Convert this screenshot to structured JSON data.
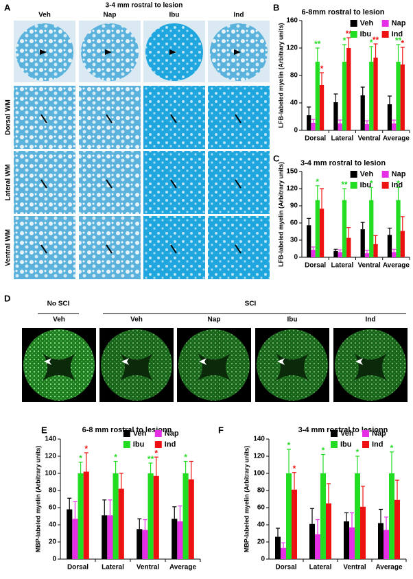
{
  "panels": {
    "A": {
      "letter": "A",
      "title": "3-4 mm rostral to lesion",
      "columns": [
        "Veh",
        "Nap",
        "Ibu",
        "Ind"
      ],
      "rows": [
        "Dorsal WM",
        "Lateral WM",
        "Ventral WM"
      ]
    },
    "D": {
      "letter": "D",
      "groups": [
        "No SCI",
        "SCI"
      ],
      "columns": [
        "Veh",
        "Veh",
        "Nap",
        "Ibu",
        "Ind"
      ]
    }
  },
  "chart_data": [
    {
      "letter": "B",
      "type": "bar",
      "title": "6-8mm rostral to lesion",
      "y_label": "LFB-labeled myelin (Arbitrary units)",
      "categories": [
        "Dorsal",
        "Lateral",
        "Ventral",
        "Average"
      ],
      "ylim": [
        0,
        160
      ],
      "yticks": [
        0,
        40,
        80,
        120,
        160
      ],
      "series": [
        {
          "name": "Veh",
          "color": "#000000",
          "values": [
            22,
            41,
            51,
            38
          ],
          "errors": [
            12,
            12,
            12,
            12
          ],
          "significance": [
            null,
            null,
            null,
            null
          ]
        },
        {
          "name": "Nap",
          "color": "#e62ee6",
          "values": [
            11,
            10,
            9,
            10
          ],
          "errors": [
            5,
            5,
            5,
            5
          ],
          "significance": [
            null,
            null,
            null,
            null
          ]
        },
        {
          "name": "Ibu",
          "color": "#22dd22",
          "values": [
            100,
            100,
            100,
            100
          ],
          "errors": [
            20,
            25,
            22,
            25
          ],
          "significance": [
            "**",
            "*",
            "*",
            "**"
          ]
        },
        {
          "name": "Ind",
          "color": "#ee1111",
          "values": [
            66,
            120,
            106,
            96
          ],
          "errors": [
            18,
            15,
            20,
            25
          ],
          "significance": [
            "*",
            "**",
            "**",
            "*"
          ]
        }
      ]
    },
    {
      "letter": "C",
      "type": "bar",
      "title": "3-4 mm rostral to lesion",
      "y_label": "LFB-labeled myelin (Arbitrary units)",
      "categories": [
        "Dorsal",
        "Lateral",
        "Ventral",
        "Average"
      ],
      "ylim": [
        0,
        150
      ],
      "yticks": [
        0,
        30,
        60,
        90,
        120,
        150
      ],
      "series": [
        {
          "name": "Veh",
          "color": "#000000",
          "values": [
            56,
            11,
            49,
            39
          ],
          "errors": [
            12,
            3,
            12,
            12
          ],
          "significance": [
            null,
            null,
            null,
            null
          ]
        },
        {
          "name": "Nap",
          "color": "#e62ee6",
          "values": [
            13,
            9,
            7,
            9
          ],
          "errors": [
            5,
            4,
            5,
            5
          ],
          "significance": [
            null,
            null,
            null,
            null
          ]
        },
        {
          "name": "Ibu",
          "color": "#22dd22",
          "values": [
            100,
            100,
            100,
            100
          ],
          "errors": [
            25,
            20,
            22,
            22
          ],
          "significance": [
            "*",
            "**",
            "*",
            "*"
          ]
        },
        {
          "name": "Ind",
          "color": "#ee1111",
          "values": [
            85,
            34,
            23,
            46
          ],
          "errors": [
            35,
            18,
            15,
            25
          ],
          "significance": [
            null,
            null,
            null,
            null
          ]
        }
      ]
    },
    {
      "letter": "E",
      "type": "bar",
      "title": "6-8 mm rostral to lesionn",
      "y_label": "MBP-labeled myelin (Arbitrary units)",
      "categories": [
        "Dorsal",
        "Lateral",
        "Ventral",
        "Average"
      ],
      "ylim": [
        0,
        140
      ],
      "yticks": [
        0,
        20,
        40,
        60,
        80,
        100,
        120,
        140
      ],
      "series": [
        {
          "name": "Veh",
          "color": "#000000",
          "values": [
            58,
            51,
            35,
            47
          ],
          "errors": [
            13,
            18,
            12,
            14
          ],
          "significance": [
            null,
            null,
            null,
            null
          ]
        },
        {
          "name": "Nap",
          "color": "#e62ee6",
          "values": [
            47,
            51,
            34,
            44
          ],
          "errors": [
            20,
            18,
            12,
            18
          ],
          "significance": [
            null,
            null,
            null,
            null
          ]
        },
        {
          "name": "Ibu",
          "color": "#22dd22",
          "values": [
            100,
            100,
            100,
            100
          ],
          "errors": [
            13,
            14,
            12,
            14
          ],
          "significance": [
            "*",
            "*",
            "**",
            "*"
          ]
        },
        {
          "name": "Ind",
          "color": "#ee1111",
          "values": [
            102,
            82,
            97,
            93
          ],
          "errors": [
            22,
            18,
            22,
            21
          ],
          "significance": [
            "*",
            null,
            "*",
            null
          ]
        }
      ]
    },
    {
      "letter": "F",
      "type": "bar",
      "title": "3-4 mm rostral to lesionn",
      "y_label": "MBP-labeled myelin (Arbitrary units)",
      "categories": [
        "Dorsal",
        "Lateral",
        "Ventral",
        "Average"
      ],
      "ylim": [
        0,
        140
      ],
      "yticks": [
        0,
        20,
        40,
        60,
        80,
        100,
        120,
        140
      ],
      "series": [
        {
          "name": "Veh",
          "color": "#000000",
          "values": [
            26,
            41,
            44,
            42
          ],
          "errors": [
            10,
            18,
            10,
            16
          ],
          "significance": [
            null,
            null,
            null,
            null
          ]
        },
        {
          "name": "Nap",
          "color": "#e62ee6",
          "values": [
            13,
            29,
            37,
            34
          ],
          "errors": [
            6,
            17,
            17,
            15
          ],
          "significance": [
            null,
            null,
            null,
            null
          ]
        },
        {
          "name": "Ibu",
          "color": "#22dd22",
          "values": [
            100,
            100,
            100,
            100
          ],
          "errors": [
            28,
            22,
            20,
            25
          ],
          "significance": [
            "*",
            "*",
            "*",
            "*"
          ]
        },
        {
          "name": "Ind",
          "color": "#ee1111",
          "values": [
            81,
            65,
            61,
            69
          ],
          "errors": [
            20,
            23,
            24,
            23
          ],
          "significance": [
            "*",
            null,
            null,
            null
          ]
        }
      ]
    }
  ]
}
